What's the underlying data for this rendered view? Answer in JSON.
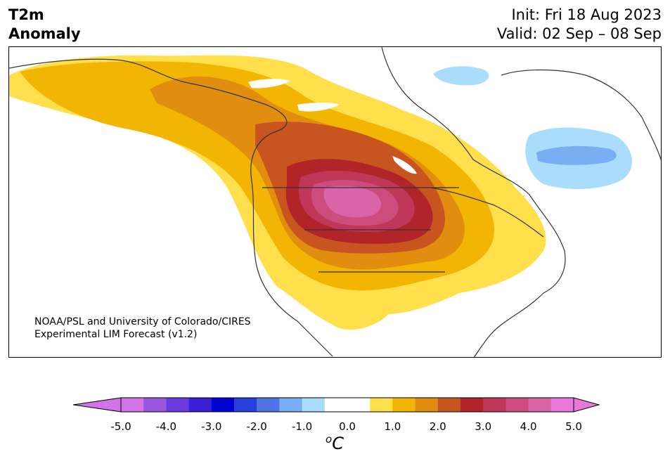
{
  "title": {
    "line1": "T2m",
    "line2": "Anomaly"
  },
  "forecast": {
    "init": "Init: Fri 18 Aug 2023",
    "valid": "Valid: 02 Sep – 08 Sep"
  },
  "credit": {
    "line1": "NOAA/PSL and University of Colorado/CIRES",
    "line2": "Experimental LIM Forecast (v1.2)"
  },
  "colorbar": {
    "unit_base": "C",
    "unit_sup": "o",
    "ticks": [
      "-5.0",
      "-4.0",
      "-3.0",
      "-2.0",
      "-1.0",
      "0.0",
      "1.0",
      "2.0",
      "3.0",
      "4.0",
      "5.0"
    ],
    "colors": [
      "#d274e6",
      "#9a55e1",
      "#6a3adf",
      "#3a1fd6",
      "#0000d0",
      "#2640dc",
      "#4e74e6",
      "#7aaef3",
      "#aadcfc",
      "#ffffff",
      "#ffffff",
      "#ffdf4b",
      "#f3b503",
      "#e08d10",
      "#c85420",
      "#b0242a",
      "#c0375a",
      "#cb4c7d",
      "#d964a8",
      "#e878da"
    ],
    "under_color": "#d274e6",
    "over_color": "#e878da"
  },
  "map_colors": {
    "warm_1": "#ffdf4b",
    "warm_2": "#f3b503",
    "warm_3": "#e08d10",
    "warm_4": "#c85420",
    "warm_5": "#b0242a",
    "warm_6": "#c0375a",
    "warm_7": "#cb4c7d",
    "warm_8": "#d964a8",
    "cool_1": "#aadcfc",
    "cool_2": "#7aaef3",
    "coast": "#333333"
  }
}
